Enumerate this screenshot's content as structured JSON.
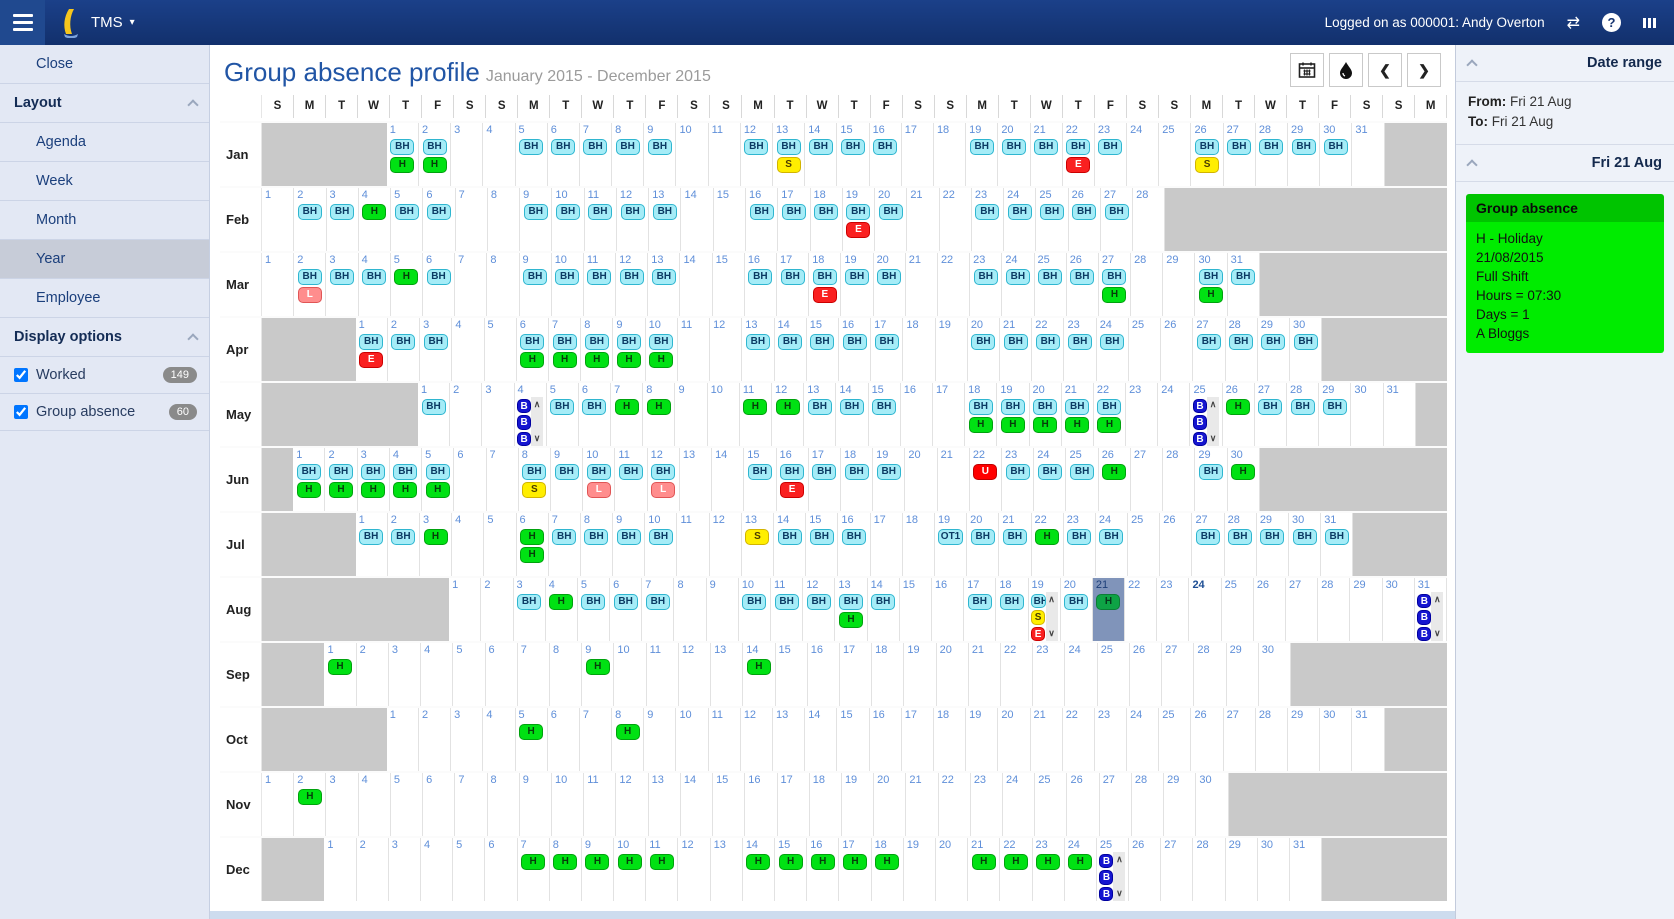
{
  "navbar": {
    "app": "TMS",
    "logged_on": "Logged on as 000001: Andy Overton",
    "icons": [
      "menu-icon",
      "app-logo-icon",
      "switch-icon",
      "help-icon",
      "more-icon"
    ]
  },
  "sidebar": {
    "close": "Close",
    "layout_header": "Layout",
    "layout_items": [
      {
        "label": "Agenda",
        "selected": false
      },
      {
        "label": "Week",
        "selected": false
      },
      {
        "label": "Month",
        "selected": false
      },
      {
        "label": "Year",
        "selected": true
      },
      {
        "label": "Employee",
        "selected": false
      }
    ],
    "display_header": "Display options",
    "display_items": [
      {
        "label": "Worked",
        "checked": true,
        "count": "149"
      },
      {
        "label": "Group absence",
        "checked": true,
        "count": "60"
      }
    ]
  },
  "header": {
    "title": "Group absence profile",
    "subtitle": "January 2015 - December 2015"
  },
  "toolbar": {
    "buttons": [
      "calendar-button",
      "legend-button",
      "previous-button",
      "next-button"
    ]
  },
  "rightpanel": {
    "date_range_title": "Date range",
    "from_label": "From:",
    "from_value": "Fri 21 Aug",
    "to_label": "To:",
    "to_value": "Fri 21 Aug",
    "day_title": "Fri 21 Aug",
    "absence": {
      "title": "Group absence",
      "lines": [
        "H - Holiday",
        "21/08/2015",
        "Full Shift",
        "Hours = 07:30",
        "Days = 1",
        "A Bloggs"
      ]
    }
  },
  "calendar": {
    "weekdays": [
      "S",
      "M",
      "T",
      "W",
      "T",
      "F",
      "S",
      "S",
      "M",
      "T",
      "W",
      "T",
      "F",
      "S",
      "S",
      "M",
      "T",
      "W",
      "T",
      "F",
      "S",
      "S",
      "M",
      "T",
      "W",
      "T",
      "F",
      "S",
      "S",
      "M",
      "T",
      "W",
      "T",
      "F",
      "S",
      "S",
      "M"
    ],
    "badge_styles": {
      "BH": {
        "bg": "#a5ecf7",
        "bd": "#2fb6d0",
        "fg": "#0b3a63"
      },
      "OT1": {
        "bg": "#a5ecf7",
        "bd": "#2fb6d0",
        "fg": "#0b3a63"
      },
      "H": {
        "bg": "#00e113",
        "bd": "#00a20d",
        "fg": "#063d0a"
      },
      "H_sel": {
        "bg": "#0ea345",
        "bd": "#0b7d36",
        "fg": "#06391c"
      },
      "S": {
        "bg": "#ffee00",
        "bd": "#d2b400",
        "fg": "#4a3c00"
      },
      "E": {
        "bg": "#fa2020",
        "bd": "#cc0000",
        "fg": "#ffffff"
      },
      "L": {
        "bg": "#ff8d8d",
        "bd": "#e05555",
        "fg": "#ffffff"
      },
      "U": {
        "bg": "#ff0000",
        "bd": "#c00000",
        "fg": "#ffffff"
      },
      "B": {
        "bg": "#1515d0",
        "bd": "#0000a0",
        "fg": "#ffffff"
      }
    },
    "months": [
      {
        "name": "Jan",
        "start": 4,
        "days": 31,
        "cells": {
          "1": [
            "BH",
            "H"
          ],
          "2": [
            "BH",
            "H"
          ],
          "5": [
            "BH"
          ],
          "6": [
            "BH"
          ],
          "7": [
            "BH"
          ],
          "8": [
            "BH"
          ],
          "9": [
            "BH"
          ],
          "12": [
            "BH"
          ],
          "13": [
            "BH",
            "S"
          ],
          "14": [
            "BH"
          ],
          "15": [
            "BH"
          ],
          "16": [
            "BH"
          ],
          "19": [
            "BH"
          ],
          "20": [
            "BH"
          ],
          "21": [
            "BH"
          ],
          "22": [
            "BH",
            "E"
          ],
          "23": [
            "BH"
          ],
          "26": [
            "BH",
            "S"
          ],
          "27": [
            "BH"
          ],
          "28": [
            "BH"
          ],
          "29": [
            "BH"
          ],
          "30": [
            "BH"
          ]
        }
      },
      {
        "name": "Feb",
        "start": 0,
        "days": 28,
        "cells": {
          "2": [
            "BH"
          ],
          "3": [
            "BH"
          ],
          "4": [
            "H"
          ],
          "5": [
            "BH"
          ],
          "6": [
            "BH"
          ],
          "9": [
            "BH"
          ],
          "10": [
            "BH"
          ],
          "11": [
            "BH"
          ],
          "12": [
            "BH"
          ],
          "13": [
            "BH"
          ],
          "16": [
            "BH"
          ],
          "17": [
            "BH"
          ],
          "18": [
            "BH"
          ],
          "19": [
            "BH",
            "E"
          ],
          "20": [
            "BH"
          ],
          "23": [
            "BH"
          ],
          "24": [
            "BH"
          ],
          "25": [
            "BH"
          ],
          "26": [
            "BH"
          ],
          "27": [
            "BH"
          ]
        }
      },
      {
        "name": "Mar",
        "start": 0,
        "days": 31,
        "cells": {
          "2": [
            "BH",
            "L"
          ],
          "3": [
            "BH"
          ],
          "4": [
            "BH"
          ],
          "5": [
            "H"
          ],
          "6": [
            "BH"
          ],
          "9": [
            "BH"
          ],
          "10": [
            "BH"
          ],
          "11": [
            "BH"
          ],
          "12": [
            "BH"
          ],
          "13": [
            "BH"
          ],
          "16": [
            "BH"
          ],
          "17": [
            "BH"
          ],
          "18": [
            "BH",
            "E"
          ],
          "19": [
            "BH"
          ],
          "20": [
            "BH"
          ],
          "23": [
            "BH"
          ],
          "24": [
            "BH"
          ],
          "25": [
            "BH"
          ],
          "26": [
            "BH"
          ],
          "27": [
            "BH",
            "H"
          ],
          "30": [
            "BH",
            "H"
          ],
          "31": [
            "BH"
          ]
        }
      },
      {
        "name": "Apr",
        "start": 3,
        "days": 30,
        "cells": {
          "1": [
            "BH",
            "E"
          ],
          "2": [
            "BH"
          ],
          "3": [
            "BH"
          ],
          "6": [
            "BH",
            "H"
          ],
          "7": [
            "BH",
            "H"
          ],
          "8": [
            "BH",
            "H"
          ],
          "9": [
            "BH",
            "H"
          ],
          "10": [
            "BH",
            "H"
          ],
          "13": [
            "BH"
          ],
          "14": [
            "BH"
          ],
          "15": [
            "BH"
          ],
          "16": [
            "BH"
          ],
          "17": [
            "BH"
          ],
          "20": [
            "BH"
          ],
          "21": [
            "BH"
          ],
          "22": [
            "BH"
          ],
          "23": [
            "BH"
          ],
          "24": [
            "BH"
          ],
          "27": [
            "BH"
          ],
          "28": [
            "BH"
          ],
          "29": [
            "BH"
          ],
          "30": [
            "BH"
          ]
        }
      },
      {
        "name": "May",
        "start": 5,
        "days": 31,
        "cells": {
          "1": [
            "BH"
          ],
          "5": [
            "BH"
          ],
          "6": [
            "BH"
          ],
          "7": [
            "H"
          ],
          "8": [
            "H"
          ],
          "11": [
            "H"
          ],
          "12": [
            "H"
          ],
          "13": [
            "BH"
          ],
          "14": [
            "BH"
          ],
          "15": [
            "BH"
          ],
          "18": [
            "BH",
            "H"
          ],
          "19": [
            "BH",
            "H"
          ],
          "20": [
            "BH",
            "H"
          ],
          "21": [
            "BH",
            "H"
          ],
          "22": [
            "BH",
            "H"
          ],
          "26": [
            "H"
          ],
          "27": [
            "BH"
          ],
          "28": [
            "BH"
          ],
          "29": [
            "BH"
          ]
        },
        "stacks": {
          "4": [
            "B",
            "B",
            "B"
          ],
          "25": [
            "B",
            "B",
            "B"
          ]
        }
      },
      {
        "name": "Jun",
        "start": 1,
        "days": 30,
        "cells": {
          "1": [
            "BH",
            "H"
          ],
          "2": [
            "BH",
            "H"
          ],
          "3": [
            "BH",
            "H"
          ],
          "4": [
            "BH",
            "H"
          ],
          "5": [
            "BH",
            "H"
          ],
          "8": [
            "BH",
            "S"
          ],
          "9": [
            "BH"
          ],
          "10": [
            "BH",
            "L"
          ],
          "11": [
            "BH"
          ],
          "12": [
            "BH",
            "L"
          ],
          "15": [
            "BH"
          ],
          "16": [
            "BH",
            "E"
          ],
          "17": [
            "BH"
          ],
          "18": [
            "BH"
          ],
          "19": [
            "BH"
          ],
          "22": [
            "U"
          ],
          "23": [
            "BH"
          ],
          "24": [
            "BH"
          ],
          "25": [
            "BH"
          ],
          "26": [
            "H"
          ],
          "29": [
            "BH"
          ],
          "30": [
            "H"
          ]
        }
      },
      {
        "name": "Jul",
        "start": 3,
        "days": 31,
        "cells": {
          "1": [
            "BH"
          ],
          "2": [
            "BH"
          ],
          "3": [
            "H"
          ],
          "6": [
            "H",
            "H"
          ],
          "7": [
            "BH"
          ],
          "8": [
            "BH"
          ],
          "9": [
            "BH"
          ],
          "10": [
            "BH"
          ],
          "13": [
            "S"
          ],
          "14": [
            "BH"
          ],
          "15": [
            "BH"
          ],
          "16": [
            "BH"
          ],
          "19": [
            "OT1"
          ],
          "20": [
            "BH"
          ],
          "21": [
            "BH"
          ],
          "22": [
            "H"
          ],
          "23": [
            "BH"
          ],
          "24": [
            "BH"
          ],
          "27": [
            "BH"
          ],
          "28": [
            "BH"
          ],
          "29": [
            "BH"
          ],
          "30": [
            "BH"
          ],
          "31": [
            "BH"
          ]
        }
      },
      {
        "name": "Aug",
        "start": 6,
        "days": 31,
        "selected": 21,
        "bold_day": 24,
        "cells": {
          "3": [
            "BH"
          ],
          "4": [
            "H"
          ],
          "5": [
            "BH"
          ],
          "6": [
            "BH"
          ],
          "7": [
            "BH"
          ],
          "10": [
            "BH"
          ],
          "11": [
            "BH"
          ],
          "12": [
            "BH"
          ],
          "13": [
            "BH",
            "H"
          ],
          "14": [
            "BH"
          ],
          "17": [
            "BH"
          ],
          "18": [
            "BH"
          ],
          "20": [
            "BH"
          ],
          "21": [
            "H"
          ]
        },
        "stacks": {
          "19": [
            "BH",
            "S",
            "E"
          ],
          "31": [
            "B",
            "B",
            "B"
          ]
        }
      },
      {
        "name": "Sep",
        "start": 2,
        "days": 30,
        "cells": {
          "1": [
            "H"
          ],
          "9": [
            "H"
          ],
          "14": [
            "H"
          ]
        }
      },
      {
        "name": "Oct",
        "start": 4,
        "days": 31,
        "cells": {
          "5": [
            "H"
          ],
          "8": [
            "H"
          ]
        }
      },
      {
        "name": "Nov",
        "start": 0,
        "days": 30,
        "cells": {
          "2": [
            "H"
          ]
        }
      },
      {
        "name": "Dec",
        "start": 2,
        "days": 31,
        "cells": {
          "7": [
            "H"
          ],
          "8": [
            "H"
          ],
          "9": [
            "H"
          ],
          "10": [
            "H"
          ],
          "11": [
            "H"
          ],
          "14": [
            "H"
          ],
          "15": [
            "H"
          ],
          "16": [
            "H"
          ],
          "17": [
            "H"
          ],
          "18": [
            "H"
          ],
          "21": [
            "H"
          ],
          "22": [
            "H"
          ],
          "23": [
            "H"
          ],
          "24": [
            "H"
          ]
        },
        "stacks": {
          "25": [
            "B",
            "B",
            "B"
          ]
        }
      }
    ]
  }
}
